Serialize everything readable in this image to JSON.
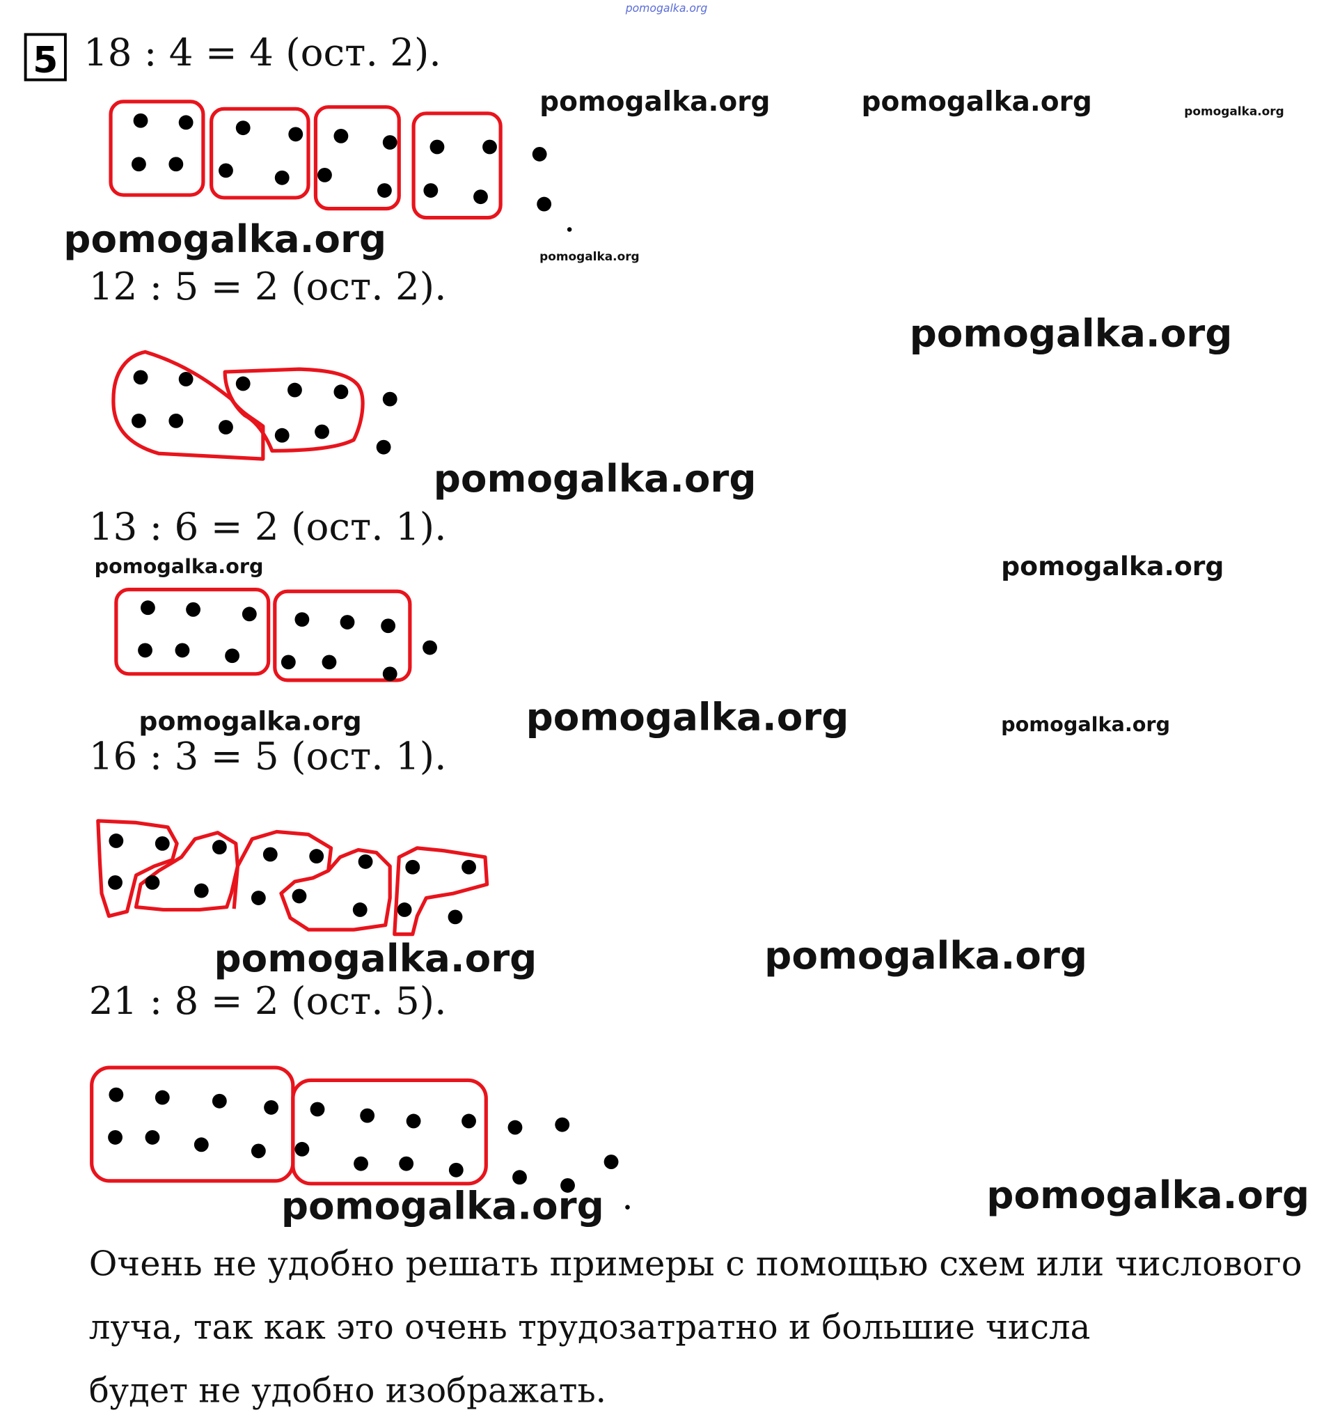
{
  "task_number": "5",
  "equations": [
    "18 : 4 = 4 (ост. 2).",
    "12 : 5 = 2 (ост. 2).",
    "13 : 6 = 2 (ост. 1).",
    "16 : 3 = 5 (ост. 1).",
    "21 : 8 = 2 (ост. 5)."
  ],
  "note_lines": [
    "Очень не удобно решать примеры с помощью схем или числового",
    "луча, так как это очень трудозатратно и большие числа",
    "будет не удобно изображать."
  ],
  "watermark": "pomogalka.org",
  "colors": {
    "outline": "#e8141c",
    "dots": "#000000",
    "top_watermark": "#5a6cd8"
  }
}
